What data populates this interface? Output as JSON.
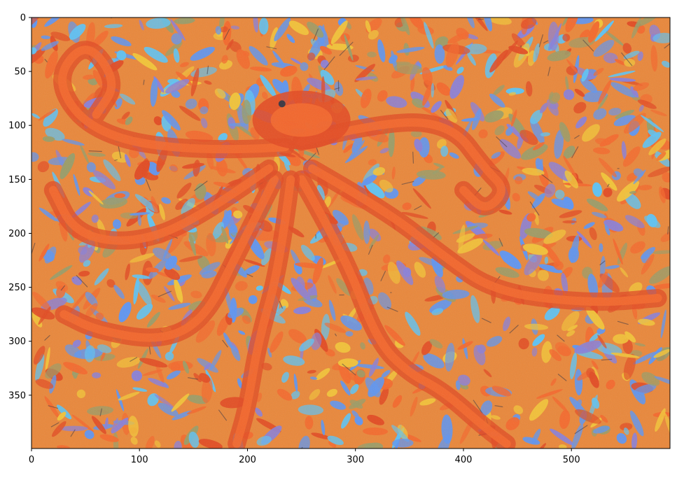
{
  "figure": {
    "image_subject": "orange-octopus-painting",
    "palette": {
      "orange": "#f4682c",
      "deep_orange": "#e24a22",
      "yellow": "#f2c338",
      "blue": "#5f95f0",
      "light_blue": "#5fc2f2",
      "violet": "#8a7fd7",
      "olive": "#9a9c67",
      "dark_stroke": "#3a3540"
    },
    "x_axis": {
      "ticks": [
        "0",
        "100",
        "200",
        "300",
        "400",
        "500"
      ]
    },
    "y_axis": {
      "ticks": [
        "0",
        "50",
        "100",
        "150",
        "200",
        "250",
        "300",
        "350"
      ]
    }
  }
}
